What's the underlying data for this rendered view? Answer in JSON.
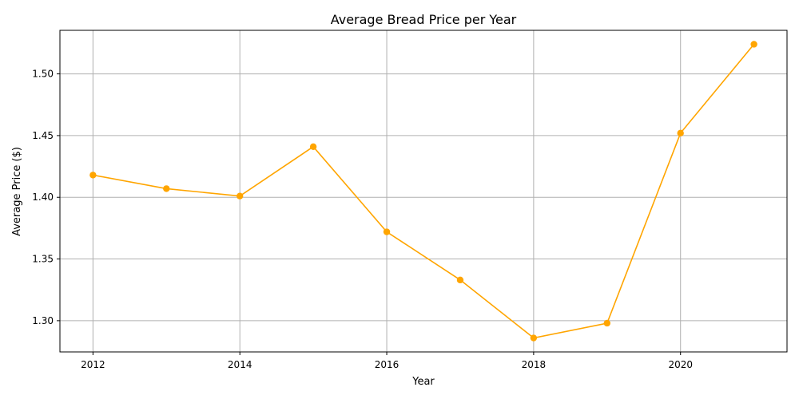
{
  "chart_data": {
    "type": "line",
    "title": "Average Bread Price per Year",
    "xlabel": "Year",
    "ylabel": "Average Price ($)",
    "x": [
      2012,
      2013,
      2014,
      2015,
      2016,
      2017,
      2018,
      2019,
      2020,
      2021
    ],
    "series": [
      {
        "values": [
          1.418,
          1.407,
          1.401,
          1.441,
          1.372,
          1.333,
          1.286,
          1.298,
          1.452,
          1.524
        ]
      }
    ],
    "xlim": [
      2011.55,
      2021.45
    ],
    "ylim": [
      1.2747,
      1.5353
    ],
    "xticks": [
      2012,
      2014,
      2016,
      2018,
      2020
    ],
    "yticks": [
      1.3,
      1.35,
      1.4,
      1.45,
      1.5
    ],
    "ytick_labels": [
      "1.30",
      "1.35",
      "1.40",
      "1.45",
      "1.50"
    ],
    "grid": true,
    "line_color": "#ffa500",
    "marker": "circle"
  }
}
